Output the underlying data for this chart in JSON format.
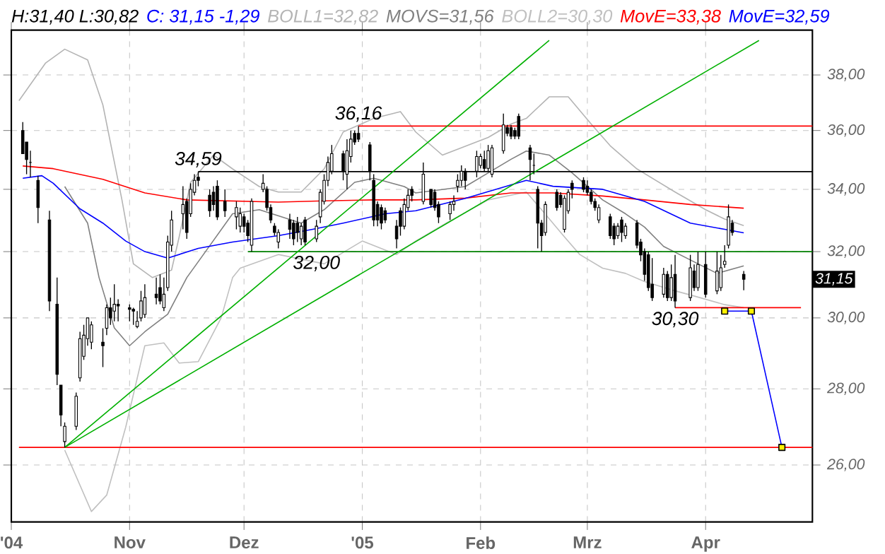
{
  "chart_data": {
    "type": "candlestick",
    "title": "H:31,40 L:30,82",
    "subtitle": "C: 31,15 -1,29",
    "color": "#000000",
    "x": [
      "2004-10-04",
      "2004-10-05",
      "2004-10-06",
      "2004-10-08",
      "2004-10-11",
      "2004-10-13",
      "2004-10-14",
      "2004-10-15",
      "2004-10-18",
      "2004-10-19",
      "2004-10-20",
      "2004-10-21",
      "2004-10-22",
      "2004-10-25",
      "2004-10-26",
      "2004-10-27",
      "2004-10-28",
      "2004-10-29",
      "2004-11-01",
      "2004-11-02",
      "2004-11-03",
      "2004-11-04",
      "2004-11-05",
      "2004-11-08",
      "2004-11-09",
      "2004-11-10",
      "2004-11-11",
      "2004-11-12",
      "2004-11-15",
      "2004-11-16",
      "2004-11-17",
      "2004-11-18",
      "2004-11-19",
      "2004-11-22",
      "2004-11-23",
      "2004-11-24",
      "2004-11-26",
      "2004-11-29",
      "2004-11-30",
      "2004-12-01",
      "2004-12-02",
      "2004-12-03",
      "2004-12-06",
      "2004-12-07",
      "2004-12-08",
      "2004-12-09",
      "2004-12-10",
      "2004-12-13",
      "2004-12-14",
      "2004-12-15",
      "2004-12-16",
      "2004-12-17",
      "2004-12-20",
      "2004-12-21",
      "2004-12-22",
      "2004-12-23",
      "2004-12-24",
      "2004-12-27",
      "2004-12-28",
      "2004-12-29",
      "2004-12-30",
      "2004-12-31",
      "2005-01-03",
      "2005-01-04",
      "2005-01-05",
      "2005-01-06",
      "2005-01-07",
      "2005-01-10",
      "2005-01-11",
      "2005-01-12",
      "2005-01-13",
      "2005-01-14",
      "2005-01-17",
      "2005-01-19",
      "2005-01-20",
      "2005-01-21",
      "2005-01-24",
      "2005-01-25",
      "2005-01-26",
      "2005-01-27",
      "2005-01-28",
      "2005-01-31",
      "2005-02-01",
      "2005-02-02",
      "2005-02-03",
      "2005-02-04",
      "2005-02-07",
      "2005-02-08",
      "2005-02-09",
      "2005-02-10",
      "2005-02-11",
      "2005-02-14",
      "2005-02-15",
      "2005-02-16",
      "2005-02-17",
      "2005-02-18",
      "2005-02-21",
      "2005-02-22",
      "2005-02-23",
      "2005-02-24",
      "2005-02-25",
      "2005-02-28",
      "2005-03-01",
      "2005-03-02",
      "2005-03-03",
      "2005-03-04",
      "2005-03-07",
      "2005-03-08",
      "2005-03-09",
      "2005-03-10",
      "2005-03-11",
      "2005-03-14",
      "2005-03-15",
      "2005-03-16",
      "2005-03-17",
      "2005-03-18",
      "2005-03-21",
      "2005-03-22",
      "2005-03-23",
      "2005-03-24",
      "2005-03-28",
      "2005-03-29",
      "2005-03-30",
      "2005-04-01",
      "2005-04-04",
      "2005-04-05",
      "2005-04-06",
      "2005-04-07",
      "2005-04-08",
      "2005-04-11"
    ],
    "ohlc": [
      [
        36.0,
        36.3,
        35.2,
        35.2
      ],
      [
        35.6,
        35.6,
        34.5,
        35.0
      ],
      [
        34.9,
        35.3,
        34.4,
        34.9
      ],
      [
        34.3,
        34.45,
        32.9,
        33.4
      ],
      [
        33.0,
        33.3,
        30.2,
        30.5
      ],
      [
        30.4,
        31.2,
        28.1,
        28.4
      ],
      [
        28.1,
        28.1,
        27.0,
        27.3
      ],
      [
        26.6,
        27.1,
        26.45,
        27.0
      ],
      [
        27.0,
        27.9,
        26.9,
        27.8
      ],
      [
        28.3,
        29.6,
        28.2,
        29.4
      ],
      [
        28.9,
        29.8,
        28.8,
        29.5
      ],
      [
        29.4,
        30.0,
        29.2,
        30.0
      ],
      [
        29.3,
        29.9,
        29.1,
        29.8
      ],
      [
        29.3,
        29.7,
        28.6,
        29.2
      ],
      [
        29.7,
        30.4,
        29.5,
        30.3
      ],
      [
        30.3,
        30.6,
        29.8,
        30.0
      ],
      [
        30.2,
        31.0,
        29.9,
        30.4
      ],
      [
        30.4,
        30.55,
        29.9,
        30.35
      ],
      [
        30.3,
        30.4,
        29.9,
        30.25
      ],
      [
        30.25,
        30.3,
        29.8,
        30.2
      ],
      [
        29.75,
        30.2,
        29.7,
        29.9
      ],
      [
        30.0,
        30.8,
        29.9,
        30.5
      ],
      [
        30.1,
        31.0,
        30.0,
        30.6
      ],
      [
        30.7,
        31.2,
        30.4,
        30.6
      ],
      [
        30.9,
        31.3,
        30.4,
        30.5
      ],
      [
        30.3,
        31.2,
        30.2,
        30.7
      ],
      [
        30.9,
        32.5,
        30.8,
        32.3
      ],
      [
        32.2,
        33.3,
        32.0,
        33.0
      ],
      [
        33.2,
        34.1,
        32.7,
        33.5
      ],
      [
        33.6,
        33.7,
        32.4,
        32.6
      ],
      [
        33.2,
        34.2,
        33.1,
        34.0
      ],
      [
        33.9,
        34.5,
        33.8,
        34.3
      ],
      [
        34.4,
        34.59,
        34.1,
        34.3
      ],
      [
        33.8,
        34.0,
        33.1,
        33.3
      ],
      [
        33.9,
        34.1,
        33.3,
        33.5
      ],
      [
        34.1,
        34.3,
        33.0,
        33.1
      ],
      [
        33.6,
        34.0,
        33.1,
        33.3
      ],
      [
        33.1,
        33.6,
        32.7,
        33.4
      ],
      [
        32.8,
        33.4,
        32.6,
        33.2
      ],
      [
        33.1,
        33.2,
        32.6,
        32.8
      ],
      [
        32.9,
        33.0,
        32.3,
        32.5
      ],
      [
        32.2,
        33.7,
        32.0,
        33.6
      ],
      [
        34.0,
        34.5,
        33.9,
        34.2
      ],
      [
        34.0,
        34.1,
        33.3,
        33.4
      ],
      [
        33.4,
        33.5,
        32.9,
        33.0
      ],
      [
        32.8,
        32.9,
        32.5,
        32.6
      ],
      [
        32.3,
        32.7,
        32.1,
        32.6
      ],
      [
        33.0,
        33.2,
        32.4,
        32.7
      ],
      [
        32.9,
        33.0,
        32.2,
        32.4
      ],
      [
        32.9,
        33.1,
        32.3,
        32.6
      ],
      [
        32.4,
        32.9,
        32.2,
        32.8
      ],
      [
        33.0,
        33.1,
        32.2,
        32.3
      ],
      [
        32.4,
        33.0,
        32.3,
        32.8
      ],
      [
        33.1,
        34.0,
        32.9,
        33.9
      ],
      [
        33.6,
        34.5,
        33.5,
        34.3
      ],
      [
        34.3,
        35.1,
        34.1,
        34.9
      ],
      [
        34.6,
        35.5,
        34.5,
        35.2
      ],
      [
        35.2,
        35.3,
        34.3,
        34.6
      ],
      [
        34.5,
        35.7,
        34.0,
        35.3
      ],
      [
        35.1,
        36.0,
        34.9,
        35.7
      ],
      [
        35.9,
        36.0,
        35.5,
        35.6
      ],
      [
        35.9,
        36.16,
        35.6,
        35.7
      ],
      [
        35.5,
        35.6,
        34.3,
        34.6
      ],
      [
        34.3,
        34.5,
        32.8,
        33.0
      ],
      [
        33.5,
        33.6,
        32.8,
        33.0
      ],
      [
        33.4,
        33.5,
        32.7,
        32.9
      ],
      [
        33.3,
        33.4,
        32.9,
        33.0
      ],
      [
        32.8,
        33.0,
        32.1,
        32.4
      ],
      [
        33.3,
        33.4,
        32.5,
        32.8
      ],
      [
        32.8,
        33.7,
        32.7,
        33.5
      ],
      [
        33.4,
        34.0,
        33.3,
        33.8
      ],
      [
        34.0,
        34.1,
        33.6,
        33.8
      ],
      [
        33.6,
        34.9,
        33.5,
        34.5
      ],
      [
        34.0,
        34.0,
        33.4,
        33.5
      ],
      [
        33.9,
        34.0,
        33.3,
        33.4
      ],
      [
        33.5,
        33.6,
        32.9,
        33.1
      ],
      [
        33.2,
        33.6,
        33.0,
        33.5
      ],
      [
        33.5,
        33.8,
        33.3,
        33.6
      ],
      [
        34.1,
        34.5,
        33.9,
        34.3
      ],
      [
        34.3,
        34.8,
        34.1,
        34.6
      ],
      [
        34.6,
        34.7,
        34.0,
        34.3
      ],
      [
        34.6,
        35.3,
        34.4,
        35.1
      ],
      [
        34.8,
        35.2,
        34.7,
        35.1
      ],
      [
        35.0,
        35.3,
        34.6,
        34.7
      ],
      [
        34.7,
        35.5,
        34.6,
        35.3
      ],
      [
        34.5,
        35.5,
        34.4,
        35.4
      ],
      [
        35.3,
        36.6,
        35.2,
        36.2
      ],
      [
        36.1,
        36.2,
        35.8,
        35.9
      ],
      [
        36.1,
        36.2,
        35.7,
        35.8
      ],
      [
        36.0,
        36.1,
        35.7,
        35.8
      ],
      [
        36.5,
        36.6,
        35.7,
        35.8
      ],
      [
        35.4,
        35.5,
        34.3,
        35.0
      ],
      [
        34.8,
        35.2,
        34.5,
        34.8
      ],
      [
        34.0,
        34.1,
        32.1,
        32.9
      ],
      [
        32.9,
        33.0,
        32.0,
        32.5
      ],
      [
        32.6,
        33.6,
        32.5,
        33.5
      ],
      [
        33.9,
        34.0,
        33.3,
        33.4
      ],
      [
        33.8,
        33.9,
        33.4,
        33.5
      ],
      [
        32.7,
        33.8,
        32.6,
        33.7
      ],
      [
        33.3,
        34.0,
        33.2,
        33.9
      ],
      [
        34.2,
        34.3,
        33.7,
        34.0
      ],
      [
        34.3,
        34.4,
        33.9,
        34.0
      ],
      [
        34.1,
        34.3,
        33.8,
        33.9
      ],
      [
        33.9,
        34.0,
        33.5,
        33.6
      ],
      [
        33.6,
        33.7,
        33.3,
        33.4
      ],
      [
        33.0,
        33.5,
        32.9,
        33.4
      ],
      [
        33.1,
        33.2,
        32.4,
        32.5
      ],
      [
        32.8,
        32.9,
        32.2,
        32.4
      ],
      [
        32.5,
        32.9,
        32.4,
        32.8
      ],
      [
        33.0,
        33.1,
        32.3,
        32.6
      ],
      [
        32.5,
        32.9,
        32.4,
        32.8
      ],
      [
        32.9,
        33.0,
        32.1,
        32.2
      ],
      [
        32.3,
        32.4,
        31.7,
        31.9
      ],
      [
        32.0,
        32.1,
        31.1,
        31.3
      ],
      [
        31.9,
        32.0,
        30.8,
        30.9
      ],
      [
        31.0,
        31.8,
        30.5,
        30.6
      ],
      [
        30.7,
        31.5,
        30.6,
        31.3
      ],
      [
        31.3,
        31.4,
        30.5,
        30.6
      ],
      [
        30.6,
        31.6,
        30.5,
        31.2
      ],
      [
        31.3,
        31.9,
        30.3,
        30.5
      ],
      [
        30.6,
        31.9,
        30.5,
        31.5
      ],
      [
        31.4,
        31.6,
        30.8,
        30.9
      ],
      [
        30.9,
        32.0,
        30.8,
        31.6
      ],
      [
        31.6,
        32.0,
        30.6,
        30.7
      ],
      [
        30.8,
        32.0,
        30.7,
        31.4
      ],
      [
        30.9,
        31.9,
        30.8,
        31.5
      ],
      [
        31.6,
        32.2,
        31.5,
        31.7
      ],
      [
        32.2,
        33.5,
        32.1,
        33.1
      ],
      [
        32.9,
        33.0,
        32.5,
        32.6
      ],
      [
        31.3,
        31.4,
        30.82,
        31.15
      ]
    ],
    "series": [
      {
        "name": "BOLL1=32,82",
        "color": "#b4b4b4",
        "type": "line",
        "x": [
          "2004-10-03",
          "2004-10-10",
          "2004-10-15",
          "2004-10-21",
          "2004-10-25",
          "2004-10-30",
          "2004-11-02",
          "2004-11-07",
          "2004-11-12",
          "2004-11-14",
          "2004-11-17",
          "2004-11-23",
          "2004-11-28",
          "2004-12-05",
          "2004-12-10",
          "2004-12-16",
          "2004-12-22",
          "2004-12-27",
          "2005-01-04",
          "2005-01-11",
          "2005-01-15",
          "2005-01-22",
          "2005-02-03",
          "2005-02-09",
          "2005-02-13",
          "2005-02-19",
          "2005-02-24",
          "2005-03-02",
          "2005-03-07",
          "2005-03-14",
          "2005-03-24",
          "2005-04-01",
          "2005-04-06",
          "2005-04-11"
        ],
        "values": [
          37.06,
          38.45,
          38.97,
          38.56,
          36.91,
          33.65,
          31.62,
          31.2,
          31.43,
          32.46,
          34.23,
          35.15,
          34.68,
          34.09,
          33.91,
          33.91,
          34.68,
          35.95,
          36.43,
          36.67,
          35.95,
          35.15,
          35.76,
          36.23,
          36.43,
          37.2,
          37.2,
          36.23,
          35.47,
          34.68,
          33.91,
          33.33,
          33.03,
          32.82
        ]
      },
      {
        "name": "MOVS=31,56",
        "color": "#808080",
        "type": "line",
        "x": [
          "2004-10-15",
          "2004-10-21",
          "2004-10-24",
          "2004-10-28",
          "2004-11-01",
          "2004-11-05",
          "2004-11-11",
          "2004-11-16",
          "2004-11-20",
          "2004-11-28",
          "2004-12-05",
          "2004-12-16",
          "2004-12-22",
          "2004-12-30",
          "2005-01-04",
          "2005-01-12",
          "2005-01-15",
          "2005-01-28",
          "2005-02-09",
          "2005-02-13",
          "2005-02-19",
          "2005-02-25",
          "2005-03-05",
          "2005-03-11",
          "2005-03-16",
          "2005-03-21",
          "2005-03-28",
          "2005-04-04",
          "2005-04-11"
        ],
        "values": [
          34.09,
          32.9,
          31.2,
          29.71,
          29.2,
          29.6,
          30.11,
          31.2,
          31.85,
          33.2,
          33.33,
          32.9,
          33.33,
          34.23,
          34.37,
          34.09,
          33.88,
          34.09,
          35.01,
          35.29,
          35.15,
          34.55,
          33.65,
          33.2,
          32.77,
          32.16,
          31.74,
          31.33,
          31.56
        ]
      },
      {
        "name": "BOLL2=30,30",
        "color": "#c0c0c0",
        "type": "line",
        "x": [
          "2004-10-15",
          "2004-10-22",
          "2004-10-26",
          "2004-10-31",
          "2004-11-05",
          "2004-11-10",
          "2004-11-14",
          "2004-11-19",
          "2004-11-25",
          "2004-11-28",
          "2004-11-30",
          "2004-12-10",
          "2004-12-22",
          "2005-01-01",
          "2005-01-10",
          "2005-01-15",
          "2005-01-23",
          "2005-02-03",
          "2005-02-13",
          "2005-02-17",
          "2005-02-23",
          "2005-02-27",
          "2005-03-05",
          "2005-03-11",
          "2005-03-16",
          "2005-03-24",
          "2005-03-28",
          "2005-04-06",
          "2005-04-11"
        ],
        "values": [
          26.38,
          24.85,
          25.25,
          26.98,
          29.2,
          29.28,
          28.71,
          28.75,
          30.0,
          31.2,
          31.49,
          31.91,
          31.62,
          32.33,
          31.91,
          32.33,
          32.9,
          33.65,
          33.91,
          33.33,
          32.46,
          31.91,
          31.49,
          31.33,
          31.08,
          30.8,
          30.68,
          30.39,
          30.3
        ]
      },
      {
        "name": "MovE=33,38",
        "color": "#ff0000",
        "type": "line",
        "x": [
          "2004-10-04",
          "2004-10-12",
          "2004-10-25",
          "2004-11-05",
          "2004-11-16",
          "2004-12-10",
          "2004-12-22",
          "2005-01-04",
          "2005-01-15",
          "2005-01-28",
          "2005-02-09",
          "2005-02-20",
          "2005-03-05",
          "2005-03-16",
          "2005-03-28",
          "2005-04-11"
        ],
        "values": [
          34.78,
          34.69,
          34.33,
          33.88,
          33.65,
          33.58,
          33.62,
          33.65,
          33.65,
          33.71,
          33.88,
          33.88,
          33.78,
          33.65,
          33.5,
          33.38
        ]
      },
      {
        "name": "MovE=32,59",
        "color": "#0000ff",
        "type": "line",
        "x": [
          "2004-10-04",
          "2004-10-09",
          "2004-10-12",
          "2004-10-19",
          "2004-10-25",
          "2004-10-31",
          "2004-11-05",
          "2004-11-11",
          "2004-11-19",
          "2004-11-28",
          "2004-12-10",
          "2004-12-19",
          "2004-12-27",
          "2005-01-07",
          "2005-01-15",
          "2005-01-28",
          "2005-02-13",
          "2005-02-20",
          "2005-03-05",
          "2005-03-16",
          "2005-03-28",
          "2005-04-06",
          "2005-04-11"
        ],
        "values": [
          34.37,
          34.45,
          34.2,
          33.36,
          32.9,
          32.33,
          32.0,
          31.8,
          32.1,
          32.3,
          32.5,
          32.7,
          32.9,
          33.2,
          33.3,
          33.7,
          34.3,
          34.1,
          34.0,
          33.6,
          32.9,
          32.7,
          32.59
        ]
      },
      {
        "color": "#000000",
        "type": "line",
        "x": [
          "2004-11-19",
          "2005-04-29"
        ],
        "values": [
          34.59,
          34.59
        ]
      },
      {
        "color": "#ff0000",
        "type": "line",
        "x": [
          "2004-12-31",
          "2005-04-29"
        ],
        "values": [
          36.16,
          36.16
        ]
      },
      {
        "color": "#008000",
        "type": "line",
        "x": [
          "2004-12-02",
          "2005-04-29"
        ],
        "values": [
          32.0,
          32.0
        ]
      },
      {
        "color": "#ff0000",
        "type": "line",
        "x": [
          "2005-03-24",
          "2005-04-26"
        ],
        "values": [
          30.3,
          30.3
        ]
      },
      {
        "color": "#ff0000",
        "type": "line",
        "x": [
          "2004-10-03",
          "2005-04-29"
        ],
        "values": [
          26.45,
          26.45
        ]
      },
      {
        "color": "#00b000",
        "type": "line",
        "x": [
          "2004-10-15",
          "2005-02-19"
        ],
        "values": [
          26.45,
          39.3
        ]
      },
      {
        "color": "#00b000",
        "type": "line",
        "x": [
          "2004-10-15",
          "2005-04-15"
        ],
        "values": [
          26.45,
          39.3
        ]
      },
      {
        "color": "#0000ff",
        "type": "line",
        "marker": "square",
        "x": [
          "2005-04-06",
          "2005-04-13",
          "2005-04-21"
        ],
        "values": [
          30.2,
          30.2,
          26.45
        ]
      }
    ],
    "xlim": [
      "2004-10-01",
      "2005-04-29"
    ],
    "xticks": [
      {
        "value": "2004-10-01",
        "label": "'04"
      },
      {
        "value": "2004-11-01",
        "label": "Nov"
      },
      {
        "value": "2004-12-01",
        "label": "Dez"
      },
      {
        "value": "2005-01-01",
        "label": "'05"
      },
      {
        "value": "2005-02-01",
        "label": "Feb"
      },
      {
        "value": "2005-03-01",
        "label": "Mrz"
      },
      {
        "value": "2005-04-01",
        "label": "Apr"
      }
    ],
    "ylim": [
      24.6,
      39.7
    ],
    "yticks": [
      {
        "value": 26,
        "label": "26,00"
      },
      {
        "value": 28,
        "label": "28,00"
      },
      {
        "value": 30,
        "label": "30,00"
      },
      {
        "value": 32,
        "label": "32,00"
      },
      {
        "value": 34,
        "label": "34,00"
      },
      {
        "value": 36,
        "label": "36,00"
      },
      {
        "value": 38,
        "label": "38,00"
      }
    ],
    "log": true,
    "grid": true,
    "legend": "top",
    "annotations": [
      {
        "text": "34,59",
        "x": "2004-11-19",
        "y": 34.59
      },
      {
        "text": "36,16",
        "x": "2004-12-31",
        "y": 36.16
      },
      {
        "text": "32,00",
        "x": "2004-12-20",
        "y": 32.0
      },
      {
        "text": "30,30",
        "x": "2005-03-24",
        "y": 30.3
      },
      "31,15"
    ]
  }
}
